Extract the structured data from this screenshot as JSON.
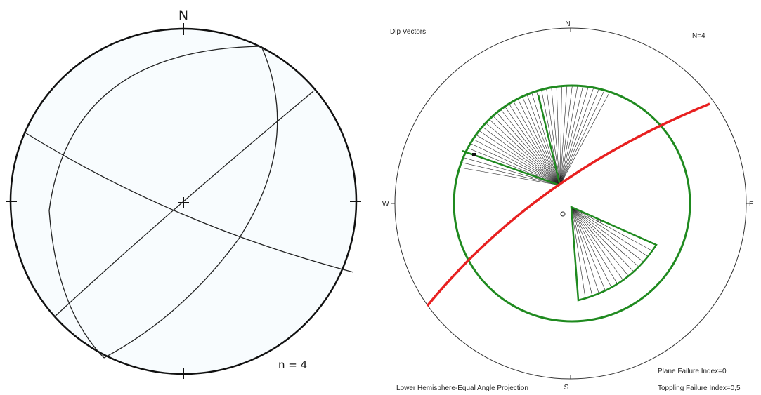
{
  "left_net": {
    "north_label": "N",
    "count_label": "n = 4"
  },
  "right_net": {
    "title": "Dip Vectors",
    "count_label": "N=4",
    "directions": {
      "n": "N",
      "e": "E",
      "s": "S",
      "w": "W"
    },
    "projection_label": "Lower Hemisphere-Equal Angle Projection",
    "plane_failure_label": "Plane Failure Index=0",
    "toppling_failure_label": "Toppling Failure Index=0,5",
    "colors": {
      "great_circle": "#e82020",
      "friction_circle": "#1f8a1f",
      "fan_lines": "#222222",
      "net_outline": "#333333"
    }
  }
}
